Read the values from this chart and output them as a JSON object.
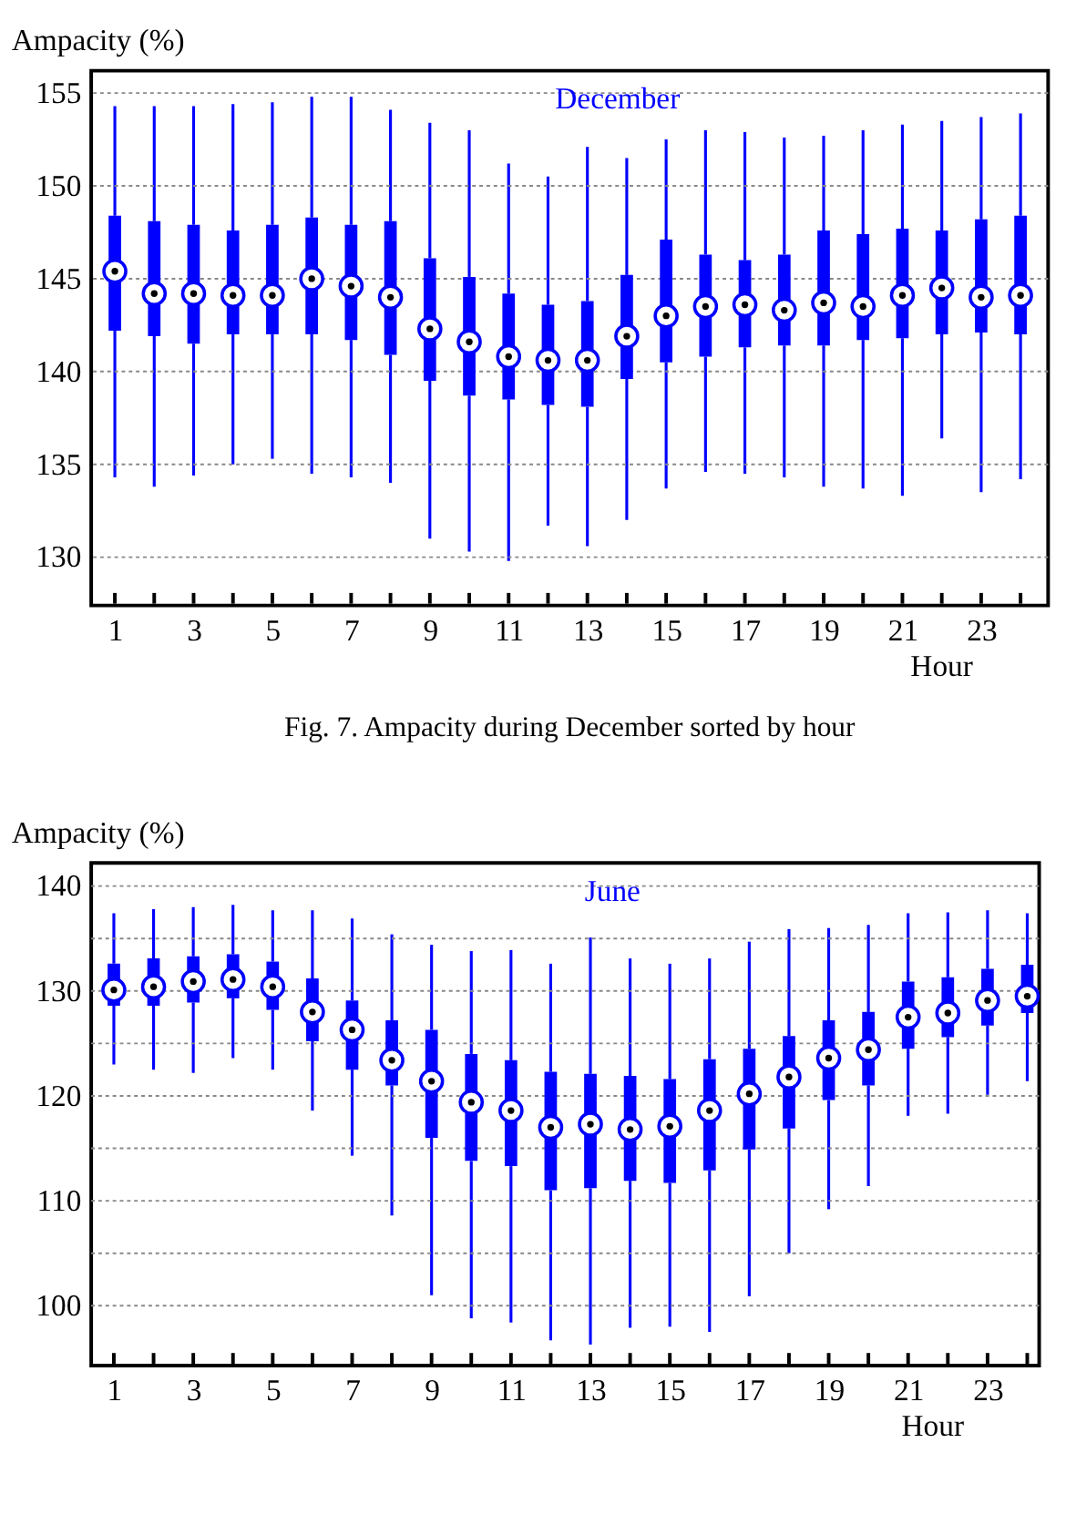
{
  "chart_data": [
    {
      "type": "box",
      "title": "December",
      "ylabel": "Ampacity (%)",
      "xlabel": "Hour",
      "annotations": [
        "Fig. 7. Ampacity during December sorted by hour"
      ],
      "x": [
        1,
        2,
        3,
        4,
        5,
        6,
        7,
        8,
        9,
        10,
        11,
        12,
        13,
        14,
        15,
        16,
        17,
        18,
        19,
        20,
        21,
        22,
        23,
        24
      ],
      "xlim": [
        0.4,
        24.7
      ],
      "xticks": [
        1,
        {
          "value": 2,
          "label": null
        },
        3,
        {
          "value": 4,
          "label": null
        },
        5,
        {
          "value": 6,
          "label": null
        },
        7,
        {
          "value": 8,
          "label": null
        },
        9,
        {
          "value": 10,
          "label": null
        },
        11,
        {
          "value": 12,
          "label": null
        },
        13,
        {
          "value": 14,
          "label": null
        },
        15,
        {
          "value": 16,
          "label": null
        },
        17,
        {
          "value": 18,
          "label": null
        },
        19,
        {
          "value": 20,
          "label": null
        },
        21,
        {
          "value": 22,
          "label": null
        },
        23,
        {
          "value": 24,
          "label": null
        }
      ],
      "ylim": [
        127.4,
        156.2
      ],
      "yticks": [
        130,
        135,
        140,
        145,
        150,
        155
      ],
      "grid": "y",
      "color": "#0000ff",
      "marker": "circle",
      "boxes": [
        {
          "low": 134.3,
          "q1": 142.2,
          "median": 145.4,
          "q3": 148.4,
          "high": 154.3
        },
        {
          "low": 133.8,
          "q1": 141.9,
          "median": 144.2,
          "q3": 148.1,
          "high": 154.3
        },
        {
          "low": 134.4,
          "q1": 141.5,
          "median": 144.2,
          "q3": 147.9,
          "high": 154.3
        },
        {
          "low": 135.0,
          "q1": 142.0,
          "median": 144.1,
          "q3": 147.6,
          "high": 154.4
        },
        {
          "low": 135.3,
          "q1": 142.0,
          "median": 144.1,
          "q3": 147.9,
          "high": 154.5
        },
        {
          "low": 134.5,
          "q1": 142.0,
          "median": 145.0,
          "q3": 148.3,
          "high": 154.8
        },
        {
          "low": 134.3,
          "q1": 141.7,
          "median": 144.6,
          "q3": 147.9,
          "high": 154.8
        },
        {
          "low": 134.0,
          "q1": 140.9,
          "median": 144.0,
          "q3": 148.1,
          "high": 154.1
        },
        {
          "low": 131.0,
          "q1": 139.5,
          "median": 142.3,
          "q3": 146.1,
          "high": 153.4
        },
        {
          "low": 130.3,
          "q1": 138.7,
          "median": 141.6,
          "q3": 145.1,
          "high": 153.0
        },
        {
          "low": 129.8,
          "q1": 138.5,
          "median": 140.8,
          "q3": 144.2,
          "high": 151.2
        },
        {
          "low": 131.7,
          "q1": 138.2,
          "median": 140.6,
          "q3": 143.6,
          "high": 150.5
        },
        {
          "low": 130.6,
          "q1": 138.1,
          "median": 140.6,
          "q3": 143.8,
          "high": 152.1
        },
        {
          "low": 132.0,
          "q1": 139.6,
          "median": 141.9,
          "q3": 145.2,
          "high": 151.5
        },
        {
          "low": 133.7,
          "q1": 140.5,
          "median": 143.0,
          "q3": 147.1,
          "high": 152.5
        },
        {
          "low": 134.6,
          "q1": 140.8,
          "median": 143.5,
          "q3": 146.3,
          "high": 153.0
        },
        {
          "low": 134.5,
          "q1": 141.3,
          "median": 143.6,
          "q3": 146.0,
          "high": 152.9
        },
        {
          "low": 134.3,
          "q1": 141.4,
          "median": 143.3,
          "q3": 146.3,
          "high": 152.6
        },
        {
          "low": 133.8,
          "q1": 141.4,
          "median": 143.7,
          "q3": 147.6,
          "high": 152.7
        },
        {
          "low": 133.7,
          "q1": 141.7,
          "median": 143.5,
          "q3": 147.4,
          "high": 153.0
        },
        {
          "low": 133.3,
          "q1": 141.8,
          "median": 144.1,
          "q3": 147.7,
          "high": 153.3
        },
        {
          "low": 136.4,
          "q1": 142.0,
          "median": 144.5,
          "q3": 147.6,
          "high": 153.5
        },
        {
          "low": 133.5,
          "q1": 142.1,
          "median": 144.0,
          "q3": 148.2,
          "high": 153.7
        },
        {
          "low": 134.2,
          "q1": 142.0,
          "median": 144.1,
          "q3": 148.4,
          "high": 153.9
        }
      ]
    },
    {
      "type": "box",
      "title": "June",
      "ylabel": "Ampacity (%)",
      "xlabel": "Hour",
      "x": [
        1,
        2,
        3,
        4,
        5,
        6,
        7,
        8,
        9,
        10,
        11,
        12,
        13,
        14,
        15,
        16,
        17,
        18,
        19,
        20,
        21,
        22,
        23,
        24
      ],
      "xlim": [
        0.43,
        24.3
      ],
      "xticks": [
        1,
        {
          "value": 2,
          "label": null
        },
        3,
        {
          "value": 4,
          "label": null
        },
        5,
        {
          "value": 6,
          "label": null
        },
        7,
        {
          "value": 8,
          "label": null
        },
        9,
        {
          "value": 10,
          "label": null
        },
        11,
        {
          "value": 12,
          "label": null
        },
        13,
        {
          "value": 14,
          "label": null
        },
        15,
        {
          "value": 16,
          "label": null
        },
        17,
        {
          "value": 18,
          "label": null
        },
        19,
        {
          "value": 20,
          "label": null
        },
        21,
        {
          "value": 22,
          "label": null
        },
        23,
        {
          "value": 24,
          "label": null
        }
      ],
      "ylim": [
        94.3,
        142.2
      ],
      "yticks": [
        100,
        {
          "value": 105,
          "label": null
        },
        110,
        {
          "value": 115,
          "label": null
        },
        120,
        {
          "value": 125,
          "label": null
        },
        130,
        {
          "value": 135,
          "label": null
        },
        140
      ],
      "grid": "y",
      "color": "#0000ff",
      "marker": "circle",
      "boxes": [
        {
          "low": 123.0,
          "q1": 128.6,
          "median": 130.1,
          "q3": 132.6,
          "high": 137.4
        },
        {
          "low": 122.5,
          "q1": 128.6,
          "median": 130.4,
          "q3": 133.1,
          "high": 137.8
        },
        {
          "low": 122.2,
          "q1": 128.9,
          "median": 130.9,
          "q3": 133.3,
          "high": 138.0
        },
        {
          "low": 123.6,
          "q1": 129.3,
          "median": 131.1,
          "q3": 133.5,
          "high": 138.2
        },
        {
          "low": 122.5,
          "q1": 128.2,
          "median": 130.4,
          "q3": 132.8,
          "high": 137.7
        },
        {
          "low": 118.6,
          "q1": 125.2,
          "median": 128.0,
          "q3": 131.2,
          "high": 137.7
        },
        {
          "low": 114.3,
          "q1": 122.5,
          "median": 126.3,
          "q3": 129.1,
          "high": 136.9
        },
        {
          "low": 108.6,
          "q1": 121.0,
          "median": 123.4,
          "q3": 127.2,
          "high": 135.4
        },
        {
          "low": 101.0,
          "q1": 116.0,
          "median": 121.4,
          "q3": 126.3,
          "high": 134.4
        },
        {
          "low": 98.8,
          "q1": 113.8,
          "median": 119.4,
          "q3": 124.0,
          "high": 133.8
        },
        {
          "low": 98.4,
          "q1": 113.3,
          "median": 118.6,
          "q3": 123.4,
          "high": 133.9
        },
        {
          "low": 96.7,
          "q1": 111.0,
          "median": 117.0,
          "q3": 122.3,
          "high": 132.6
        },
        {
          "low": 96.3,
          "q1": 111.2,
          "median": 117.3,
          "q3": 122.1,
          "high": 135.1
        },
        {
          "low": 97.9,
          "q1": 111.9,
          "median": 116.8,
          "q3": 121.9,
          "high": 133.1
        },
        {
          "low": 98.0,
          "q1": 111.7,
          "median": 117.1,
          "q3": 121.6,
          "high": 132.6
        },
        {
          "low": 97.5,
          "q1": 112.9,
          "median": 118.6,
          "q3": 123.5,
          "high": 133.1
        },
        {
          "low": 100.9,
          "q1": 114.9,
          "median": 120.2,
          "q3": 124.5,
          "high": 134.7
        },
        {
          "low": 105.0,
          "q1": 116.9,
          "median": 121.8,
          "q3": 125.7,
          "high": 135.9
        },
        {
          "low": 109.2,
          "q1": 119.6,
          "median": 123.6,
          "q3": 127.2,
          "high": 136.0
        },
        {
          "low": 111.4,
          "q1": 121.0,
          "median": 124.4,
          "q3": 128.0,
          "high": 136.3
        },
        {
          "low": 118.1,
          "q1": 124.5,
          "median": 127.5,
          "q3": 130.9,
          "high": 137.4
        },
        {
          "low": 118.3,
          "q1": 125.6,
          "median": 127.9,
          "q3": 131.3,
          "high": 137.5
        },
        {
          "low": 120.1,
          "q1": 126.7,
          "median": 129.1,
          "q3": 132.1,
          "high": 137.7
        },
        {
          "low": 121.4,
          "q1": 127.9,
          "median": 129.5,
          "q3": 132.5,
          "high": 137.4
        }
      ]
    }
  ]
}
